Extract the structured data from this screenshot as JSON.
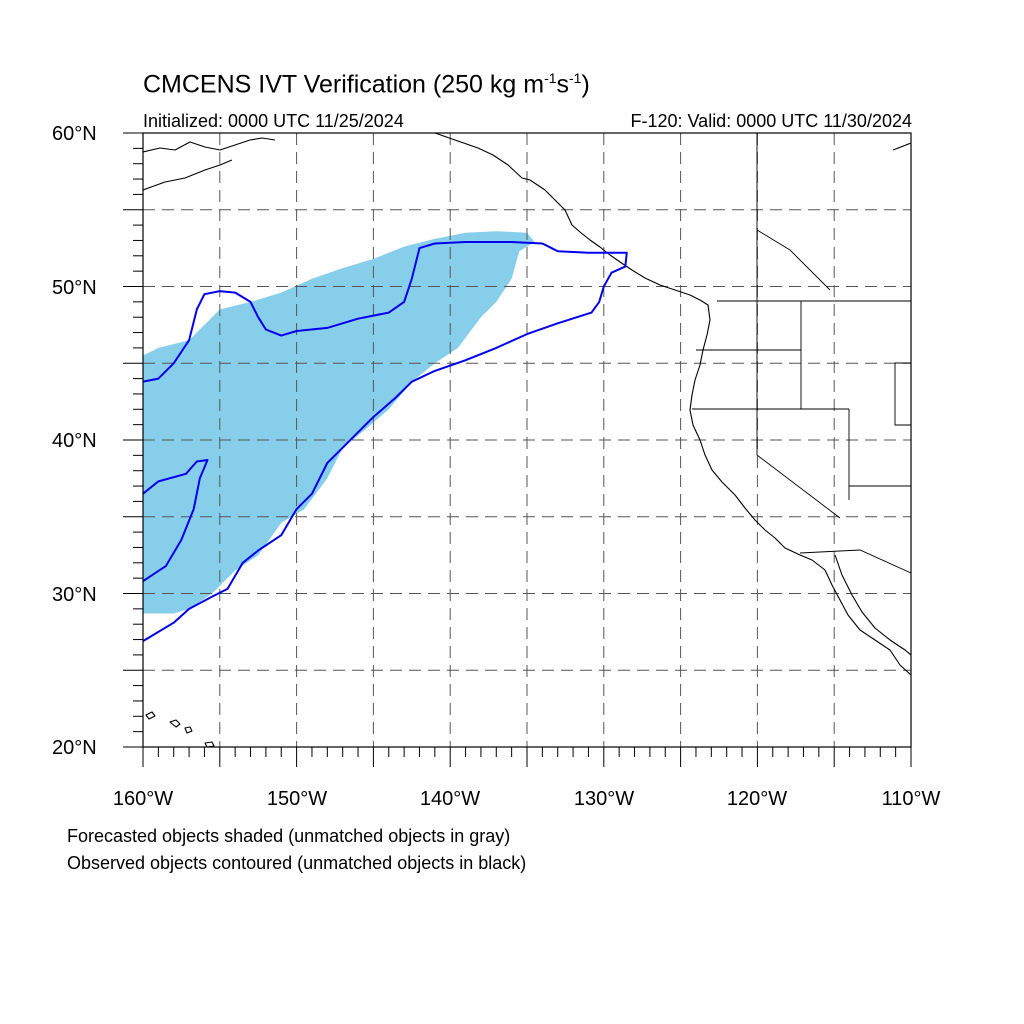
{
  "title": {
    "main": "CMCENS IVT Verification (250 kg m",
    "sup1": "-1",
    "mid": "s",
    "sup2": "-1",
    "close": ")"
  },
  "init_label": "Initialized: 0000 UTC 11/25/2024",
  "valid_label": "F-120: Valid: 0000 UTC 11/30/2024",
  "axes": {
    "lat_labels": [
      "60°N",
      "50°N",
      "40°N",
      "30°N",
      "20°N"
    ],
    "lon_labels": [
      "160°W",
      "150°W",
      "140°W",
      "130°W",
      "120°W",
      "110°W"
    ],
    "lat_range": [
      20,
      60
    ],
    "lon_range": [
      -160,
      -110
    ],
    "grid": "dashed, every 5 degrees"
  },
  "colors": {
    "forecast_fill": "#87ceeb",
    "observed_contour": "#0000ee",
    "coastline": "#000000",
    "grid": "#555555"
  },
  "legend": {
    "line1": "Forecasted objects shaded (unmatched objects in gray)",
    "line2": "Observed objects contoured (unmatched objects in black)"
  },
  "map_data": {
    "forecast_object": {
      "fill": "#87ceeb",
      "polygon_lonlat": [
        [
          -160,
          45.5
        ],
        [
          -159,
          46
        ],
        [
          -157,
          46.5
        ],
        [
          -155,
          48.5
        ],
        [
          -153,
          49
        ],
        [
          -151,
          49.6
        ],
        [
          -149,
          50.5
        ],
        [
          -147,
          51.2
        ],
        [
          -145,
          51.8
        ],
        [
          -143,
          52.6
        ],
        [
          -141,
          53.1
        ],
        [
          -139,
          53.5
        ],
        [
          -137,
          53.6
        ],
        [
          -135,
          53.5
        ],
        [
          -134.5,
          52.9
        ],
        [
          -135.5,
          52.3
        ],
        [
          -136,
          50.5
        ],
        [
          -137,
          49
        ],
        [
          -138,
          48
        ],
        [
          -139.5,
          46
        ],
        [
          -141,
          45
        ],
        [
          -142.5,
          43.8
        ],
        [
          -144,
          42
        ],
        [
          -145.5,
          40.7
        ],
        [
          -147,
          39.5
        ],
        [
          -148,
          37.5
        ],
        [
          -149.5,
          35.5
        ],
        [
          -151,
          34.6
        ],
        [
          -152.5,
          32.5
        ],
        [
          -154,
          31.5
        ],
        [
          -155.5,
          30
        ],
        [
          -157,
          29
        ],
        [
          -158,
          28.7
        ],
        [
          -160,
          28.7
        ]
      ]
    },
    "observed_objects": [
      {
        "color": "#0000ee",
        "polygon_lonlat": [
          [
            -160,
            43.8
          ],
          [
            -159,
            44
          ],
          [
            -158,
            45
          ],
          [
            -157,
            46.5
          ],
          [
            -156.5,
            48.5
          ],
          [
            -156,
            49.5
          ],
          [
            -155,
            49.7
          ],
          [
            -154,
            49.6
          ],
          [
            -153,
            49
          ],
          [
            -152.5,
            48
          ],
          [
            -152,
            47.2
          ],
          [
            -151,
            46.8
          ],
          [
            -150,
            47.1
          ],
          [
            -148,
            47.3
          ],
          [
            -146,
            47.9
          ],
          [
            -144,
            48.3
          ],
          [
            -143,
            49
          ],
          [
            -142.5,
            50.5
          ],
          [
            -142,
            52.5
          ],
          [
            -141,
            52.8
          ],
          [
            -139,
            52.9
          ],
          [
            -136,
            52.9
          ],
          [
            -134,
            52.8
          ],
          [
            -133,
            52.3
          ],
          [
            -131,
            52.2
          ],
          [
            -128.5,
            52.2
          ],
          [
            -128.6,
            51.3
          ],
          [
            -129.5,
            50.9
          ],
          [
            -130,
            50
          ],
          [
            -130.3,
            49
          ],
          [
            -130.8,
            48.3
          ],
          [
            -133,
            47.6
          ],
          [
            -135,
            46.9
          ],
          [
            -137,
            46
          ],
          [
            -139,
            45.2
          ],
          [
            -141,
            44.5
          ],
          [
            -142.5,
            43.8
          ],
          [
            -143.5,
            42.8
          ],
          [
            -145,
            41.5
          ],
          [
            -146,
            40.5
          ],
          [
            -147,
            39.5
          ],
          [
            -148,
            38.5
          ],
          [
            -149,
            36.5
          ],
          [
            -150,
            35.5
          ],
          [
            -151,
            33.8
          ],
          [
            -152.5,
            32.8
          ],
          [
            -153.5,
            32
          ],
          [
            -154.5,
            30.3
          ],
          [
            -155.5,
            29.8
          ],
          [
            -157,
            29
          ],
          [
            -158,
            28.1
          ],
          [
            -160,
            26.9
          ]
        ]
      },
      {
        "color": "#0000ee",
        "polygon_lonlat": [
          [
            -160,
            30.8
          ],
          [
            -158.5,
            31.8
          ],
          [
            -157.5,
            33.5
          ],
          [
            -156.7,
            35.5
          ],
          [
            -156.3,
            37.5
          ],
          [
            -155.8,
            38.7
          ],
          [
            -156.5,
            38.6
          ],
          [
            -157.2,
            37.8
          ],
          [
            -159,
            37.3
          ],
          [
            -160,
            36.5
          ]
        ]
      }
    ]
  }
}
